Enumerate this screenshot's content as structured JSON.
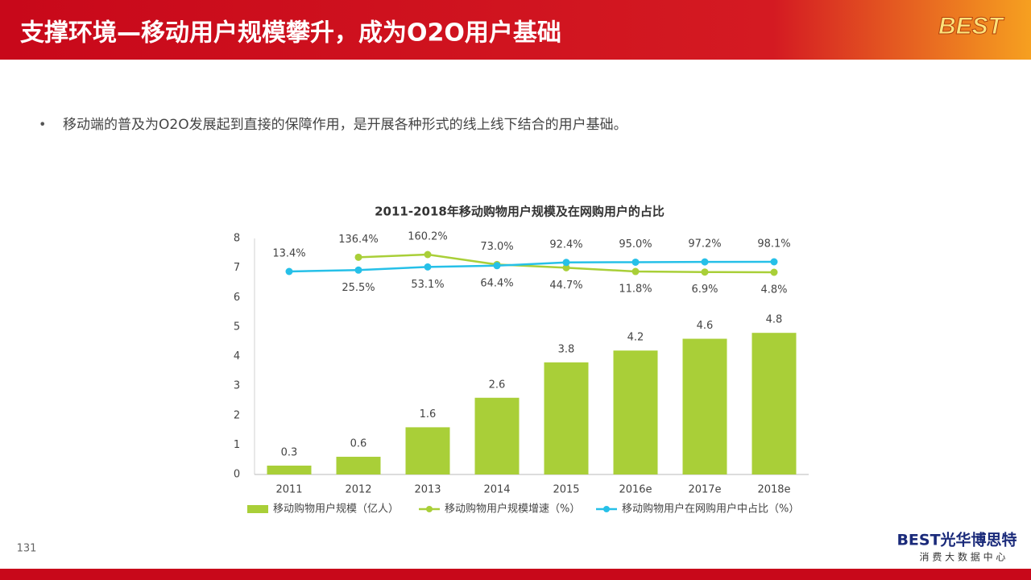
{
  "header": {
    "title": "支撑环境—移动用户规模攀升，成为O2O用户基础",
    "logo": "BEST"
  },
  "bullet": "移动端的普及为O2O发展起到直接的保障作用，是开展各种形式的线上线下结合的用户基础。",
  "page_number": "131",
  "footer": {
    "brand": "BEST光华博思特",
    "tagline": "消 费 大 数 据 中 心"
  },
  "chart_data": {
    "type": "bar",
    "title": "2011-2018年移动购物用户规模及在网购用户的占比",
    "categories": [
      "2011",
      "2012",
      "2013",
      "2014",
      "2015",
      "2016e",
      "2017e",
      "2018e"
    ],
    "ylim": [
      0,
      8
    ],
    "yticks": [
      0,
      1,
      2,
      3,
      4,
      5,
      6,
      7,
      8
    ],
    "series": [
      {
        "name": "移动购物用户规模（亿人）",
        "type": "bar",
        "color": "#a9cf38",
        "values": [
          0.3,
          0.6,
          1.6,
          2.6,
          3.8,
          4.2,
          4.6,
          4.8
        ]
      },
      {
        "name": "移动购物用户规模增速（%）",
        "type": "line",
        "color": "#a9cf38",
        "values": [
          null,
          136.4,
          160.2,
          73.0,
          44.7,
          11.8,
          6.9,
          4.8
        ],
        "value_labels": [
          null,
          "136.4%",
          "160.2%",
          "73.0%",
          "44.7%",
          "11.8%",
          "6.9%",
          "4.8%"
        ]
      },
      {
        "name": "移动购物用户在网购用户中占比（%）",
        "type": "line",
        "color": "#26c0e8",
        "values": [
          13.4,
          25.5,
          53.1,
          64.4,
          92.4,
          95.0,
          97.2,
          98.1
        ],
        "value_labels": [
          "13.4%",
          "25.5%",
          "53.1%",
          "64.4%",
          "92.4%",
          "95.0%",
          "97.2%",
          "98.1%"
        ]
      }
    ]
  }
}
